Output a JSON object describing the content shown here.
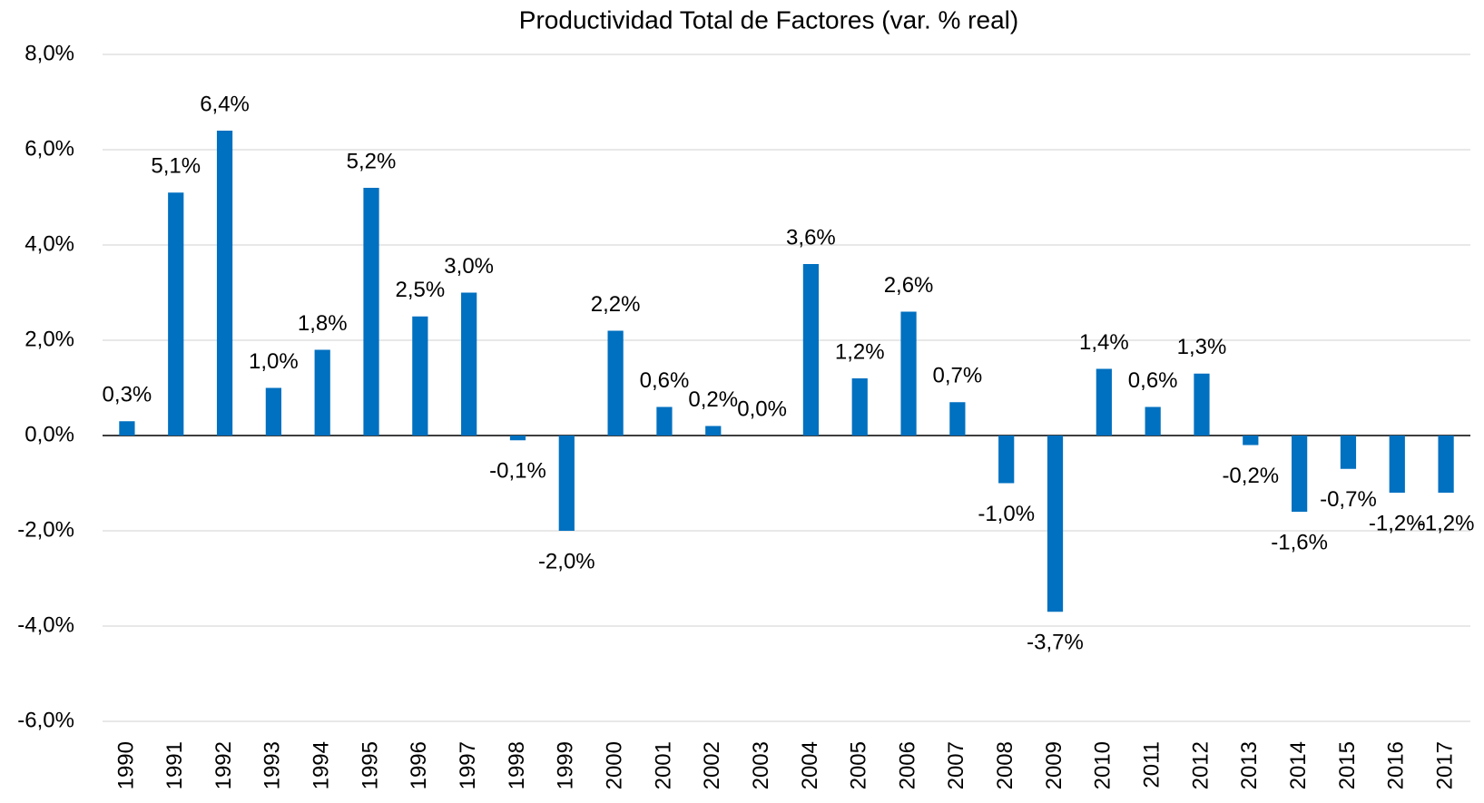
{
  "chart_data": {
    "type": "bar",
    "title": "Productividad Total de Factores (var. % real)",
    "categories": [
      "1990",
      "1991",
      "1992",
      "1993",
      "1994",
      "1995",
      "1996",
      "1997",
      "1998",
      "1999",
      "2000",
      "2001",
      "2002",
      "2003",
      "2004",
      "2005",
      "2006",
      "2007",
      "2008",
      "2009",
      "2010",
      "2011",
      "2012",
      "2013",
      "2014",
      "2015",
      "2016",
      "2017"
    ],
    "values": [
      0.3,
      5.1,
      6.4,
      1.0,
      1.8,
      5.2,
      2.5,
      3.0,
      -0.1,
      -2.0,
      2.2,
      0.6,
      0.2,
      0.0,
      3.6,
      1.2,
      2.6,
      0.7,
      -1.0,
      -3.7,
      1.4,
      0.6,
      1.3,
      -0.2,
      -1.6,
      -0.7,
      -1.2,
      -1.2
    ],
    "value_labels": [
      "0,3%",
      "5,1%",
      "6,4%",
      "1,0%",
      "1,8%",
      "5,2%",
      "2,5%",
      "3,0%",
      "-0,1%",
      "-2,0%",
      "2,2%",
      "0,6%",
      "0,2%",
      "0,0%",
      "3,6%",
      "1,2%",
      "2,6%",
      "0,7%",
      "-1,0%",
      "-3,7%",
      "1,4%",
      "0,6%",
      "1,3%",
      "-0,2%",
      "-1,6%",
      "-0,7%",
      "-1,2%",
      "-1,2%"
    ],
    "color": "#0070c0",
    "ylim": [
      -6,
      8
    ],
    "yticks": [
      {
        "value": -6,
        "label": "-6,0%"
      },
      {
        "value": -4,
        "label": "-4,0%"
      },
      {
        "value": -2,
        "label": "-2,0%"
      },
      {
        "value": 0,
        "label": "0,0%"
      },
      {
        "value": 2,
        "label": "2,0%"
      },
      {
        "value": 4,
        "label": "4,0%"
      },
      {
        "value": 6,
        "label": "6,0%"
      },
      {
        "value": 8,
        "label": "8,0%"
      }
    ],
    "grid": true
  }
}
